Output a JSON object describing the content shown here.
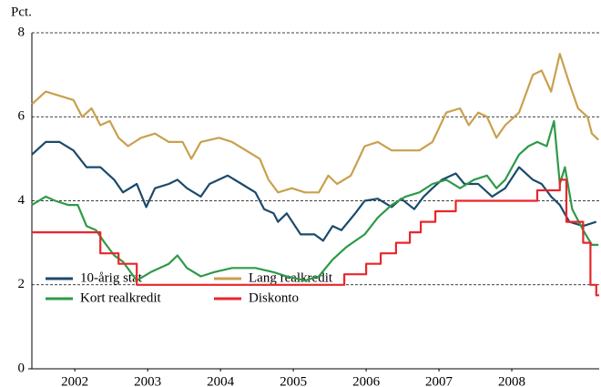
{
  "chart_data": {
    "type": "line",
    "y_label": "Pct.",
    "xlim": [
      2001.91,
      2009.7
    ],
    "xticks": [
      {
        "value": 2002.5,
        "label": "2002"
      },
      {
        "value": 2003.5,
        "label": "2003"
      },
      {
        "value": 2004.5,
        "label": "2004"
      },
      {
        "value": 2005.5,
        "label": "2005"
      },
      {
        "value": 2006.5,
        "label": "2006"
      },
      {
        "value": 2007.5,
        "label": "2007"
      },
      {
        "value": 2008.5,
        "label": "2008"
      }
    ],
    "ylim": [
      0,
      8
    ],
    "yticks": [
      0,
      2,
      4,
      6,
      8
    ],
    "grid": true,
    "series": [
      {
        "name": "10-årig stat",
        "color": "#1b4a6b",
        "x": [
          2001.91,
          2002.1,
          2002.29,
          2002.48,
          2002.66,
          2002.85,
          2003.04,
          2003.16,
          2003.35,
          2003.48,
          2003.6,
          2003.79,
          2003.91,
          2004.04,
          2004.23,
          2004.35,
          2004.6,
          2004.79,
          2004.98,
          2005.1,
          2005.23,
          2005.29,
          2005.41,
          2005.6,
          2005.79,
          2005.91,
          2006.04,
          2006.16,
          2006.35,
          2006.48,
          2006.66,
          2006.85,
          2006.98,
          2007.16,
          2007.29,
          2007.41,
          2007.54,
          2007.73,
          2007.85,
          2008.04,
          2008.23,
          2008.41,
          2008.6,
          2008.79,
          2008.91,
          2009.04,
          2009.16,
          2009.29,
          2009.48,
          2009.66
        ],
        "values": [
          5.1,
          5.4,
          5.4,
          5.2,
          4.8,
          4.8,
          4.5,
          4.2,
          4.4,
          3.85,
          4.3,
          4.4,
          4.5,
          4.3,
          4.1,
          4.4,
          4.6,
          4.4,
          4.2,
          3.8,
          3.7,
          3.5,
          3.7,
          3.2,
          3.2,
          3.05,
          3.4,
          3.3,
          3.7,
          4.0,
          4.05,
          3.85,
          4.05,
          3.8,
          4.1,
          4.3,
          4.5,
          4.65,
          4.4,
          4.4,
          4.1,
          4.3,
          4.8,
          4.5,
          4.4,
          4.1,
          3.9,
          3.5,
          3.4,
          3.5
        ]
      },
      {
        "name": "Lang realkredit",
        "color": "#c9a04e",
        "x": [
          2001.91,
          2002.1,
          2002.29,
          2002.48,
          2002.6,
          2002.73,
          2002.85,
          2002.98,
          2003.1,
          2003.23,
          2003.41,
          2003.6,
          2003.79,
          2003.98,
          2004.1,
          2004.23,
          2004.48,
          2004.66,
          2004.85,
          2005.04,
          2005.16,
          2005.29,
          2005.48,
          2005.66,
          2005.85,
          2005.98,
          2006.1,
          2006.29,
          2006.48,
          2006.66,
          2006.85,
          2007.04,
          2007.23,
          2007.41,
          2007.6,
          2007.79,
          2007.91,
          2008.04,
          2008.16,
          2008.29,
          2008.41,
          2008.6,
          2008.79,
          2008.91,
          2009.04,
          2009.16,
          2009.29,
          2009.41,
          2009.54,
          2009.6,
          2009.69
        ],
        "values": [
          6.3,
          6.6,
          6.5,
          6.4,
          6.0,
          6.2,
          5.8,
          5.9,
          5.5,
          5.3,
          5.5,
          5.6,
          5.4,
          5.4,
          5.0,
          5.4,
          5.5,
          5.4,
          5.2,
          5.0,
          4.5,
          4.2,
          4.3,
          4.2,
          4.2,
          4.6,
          4.4,
          4.6,
          5.3,
          5.4,
          5.2,
          5.2,
          5.2,
          5.4,
          6.1,
          6.2,
          5.8,
          6.1,
          6.0,
          5.5,
          5.8,
          6.1,
          7.0,
          7.1,
          6.6,
          7.5,
          6.8,
          6.2,
          6.0,
          5.6,
          5.45
        ]
      },
      {
        "name": "Kort realkredit",
        "color": "#2e9a48",
        "x": [
          2001.91,
          2002.1,
          2002.23,
          2002.41,
          2002.54,
          2002.66,
          2002.79,
          2002.91,
          2003.04,
          2003.16,
          2003.35,
          2003.54,
          2003.79,
          2003.91,
          2004.04,
          2004.23,
          2004.41,
          2004.66,
          2004.98,
          2005.23,
          2005.41,
          2005.66,
          2005.85,
          2006.04,
          2006.23,
          2006.48,
          2006.66,
          2006.85,
          2007.04,
          2007.23,
          2007.41,
          2007.6,
          2007.79,
          2007.98,
          2008.16,
          2008.29,
          2008.41,
          2008.6,
          2008.73,
          2008.85,
          2008.98,
          2009.08,
          2009.16,
          2009.23,
          2009.33,
          2009.48,
          2009.6,
          2009.69
        ],
        "values": [
          3.9,
          4.1,
          4.0,
          3.9,
          3.9,
          3.4,
          3.3,
          3.0,
          2.7,
          2.55,
          2.1,
          2.3,
          2.5,
          2.7,
          2.4,
          2.2,
          2.3,
          2.4,
          2.4,
          2.3,
          2.2,
          2.1,
          2.2,
          2.6,
          2.9,
          3.2,
          3.6,
          3.9,
          4.1,
          4.2,
          4.4,
          4.5,
          4.3,
          4.5,
          4.6,
          4.3,
          4.5,
          5.1,
          5.3,
          5.4,
          5.3,
          5.9,
          4.4,
          4.8,
          3.8,
          3.3,
          2.95,
          2.95
        ]
      },
      {
        "name": "Diskonto",
        "color": "#e8262a",
        "x": [
          2001.91,
          2002.85,
          2002.85,
          2003.1,
          2003.1,
          2003.35,
          2003.35,
          2006.2,
          2006.2,
          2006.5,
          2006.5,
          2006.7,
          2006.7,
          2006.91,
          2006.91,
          2007.1,
          2007.1,
          2007.25,
          2007.25,
          2007.45,
          2007.45,
          2007.73,
          2007.73,
          2008.85,
          2008.85,
          2009.16,
          2009.16,
          2009.25,
          2009.25,
          2009.48,
          2009.48,
          2009.58,
          2009.58,
          2009.66,
          2009.66,
          2009.7
        ],
        "values": [
          3.25,
          3.25,
          2.75,
          2.75,
          2.5,
          2.5,
          2.0,
          2.0,
          2.25,
          2.25,
          2.5,
          2.5,
          2.75,
          2.75,
          3.0,
          3.0,
          3.25,
          3.25,
          3.5,
          3.5,
          3.75,
          3.75,
          4.0,
          4.0,
          4.25,
          4.25,
          4.5,
          4.5,
          3.5,
          3.5,
          3.0,
          3.0,
          2.0,
          2.0,
          1.75,
          1.75
        ]
      }
    ]
  }
}
